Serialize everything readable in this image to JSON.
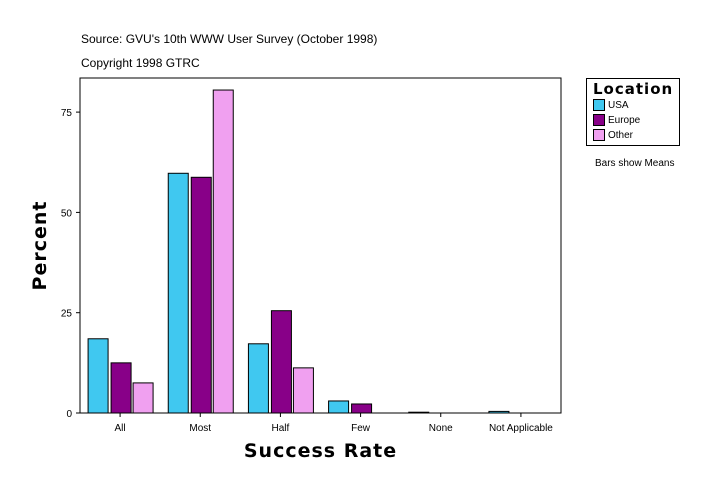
{
  "header": {
    "source": "Source: GVU's 10th WWW User Survey (October 1998)",
    "copyright": "Copyright 1998 GTRC"
  },
  "note": "Bars show Means",
  "chart_data": {
    "type": "bar",
    "xlabel": "Success Rate",
    "ylabel": "Percent",
    "categories": [
      "All",
      "Most",
      "Half",
      "Few",
      "None",
      "Not Applicable"
    ],
    "ylim": [
      0,
      83.5
    ],
    "yticks": [
      0,
      25,
      50,
      75
    ],
    "grid": false,
    "legend": {
      "title": "Location",
      "placement": "top-right, outside"
    },
    "series": [
      {
        "name": "USA",
        "color": "#40C8F0",
        "values": [
          18.5,
          59.75,
          17.25,
          3.0,
          0.2,
          0.4
        ]
      },
      {
        "name": "Europe",
        "color": "#880088",
        "values": [
          12.5,
          58.75,
          25.5,
          2.25,
          0,
          0
        ]
      },
      {
        "name": "Other",
        "color": "#F0A0F0",
        "values": [
          7.5,
          80.5,
          11.25,
          0,
          0,
          0
        ]
      }
    ]
  }
}
